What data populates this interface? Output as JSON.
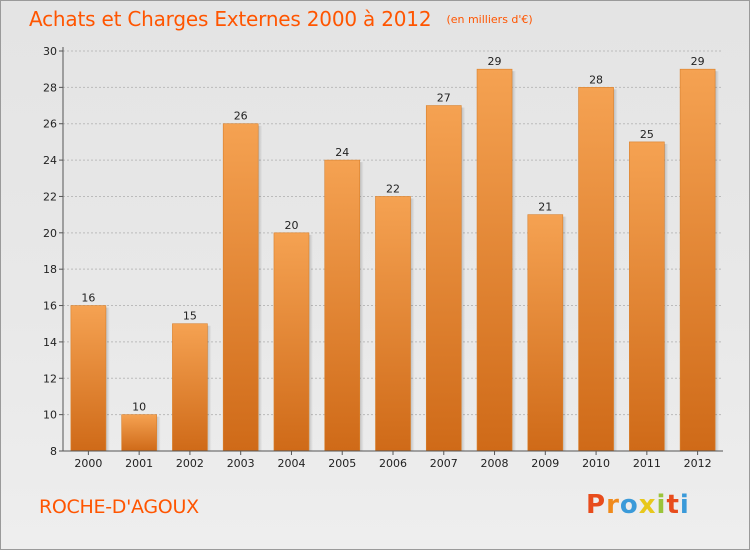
{
  "chart_data": {
    "type": "bar",
    "title": "Achats et Charges Externes 2000 à 2012",
    "unit_note": "(en milliers d'€)",
    "categories": [
      "2000",
      "2001",
      "2002",
      "2003",
      "2004",
      "2005",
      "2006",
      "2007",
      "2008",
      "2009",
      "2010",
      "2011",
      "2012"
    ],
    "values": [
      16,
      10,
      15,
      26,
      20,
      24,
      22,
      27,
      29,
      21,
      28,
      25,
      29
    ],
    "ylim": [
      8,
      30
    ],
    "yticks": [
      8,
      10,
      12,
      14,
      16,
      18,
      20,
      22,
      24,
      26,
      28,
      30
    ],
    "grid": true,
    "bar_color_top": "#f5a252",
    "bar_color_bottom": "#cf6a18"
  },
  "footer": {
    "commune": "ROCHE-D'AGOUX",
    "logo_text": "Proxiti",
    "logo_colors": [
      "#e84c1c",
      "#f08a1c",
      "#3a9ad9",
      "#e8c81c",
      "#9bc43a",
      "#e84c1c",
      "#3a9ad9"
    ]
  },
  "colors": {
    "accent": "#ff5500",
    "grid": "#bbbbbb",
    "axis": "#555555"
  }
}
